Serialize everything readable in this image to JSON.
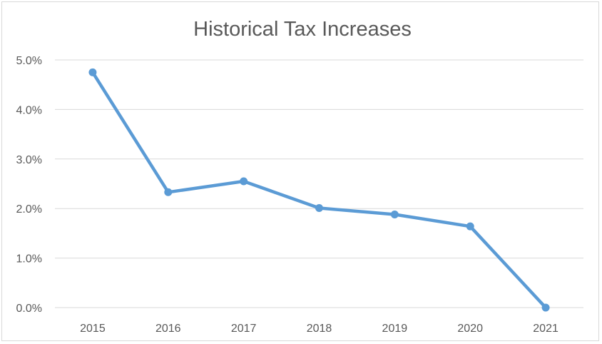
{
  "chart_data": {
    "type": "line",
    "title": "Historical Tax Increases",
    "xlabel": "",
    "ylabel": "",
    "categories": [
      "2015",
      "2016",
      "2017",
      "2018",
      "2019",
      "2020",
      "2021"
    ],
    "series": [
      {
        "values": [
          4.75,
          2.33,
          2.55,
          2.01,
          1.88,
          1.64,
          0.0
        ],
        "color": "#5b9bd5"
      }
    ],
    "ylim": [
      0,
      5
    ],
    "yticks": [
      0,
      1,
      2,
      3,
      4,
      5
    ],
    "ytick_labels": [
      "0.0%",
      "1.0%",
      "2.0%",
      "3.0%",
      "4.0%",
      "5.0%"
    ],
    "grid": true,
    "legend": "none",
    "markers": true
  }
}
